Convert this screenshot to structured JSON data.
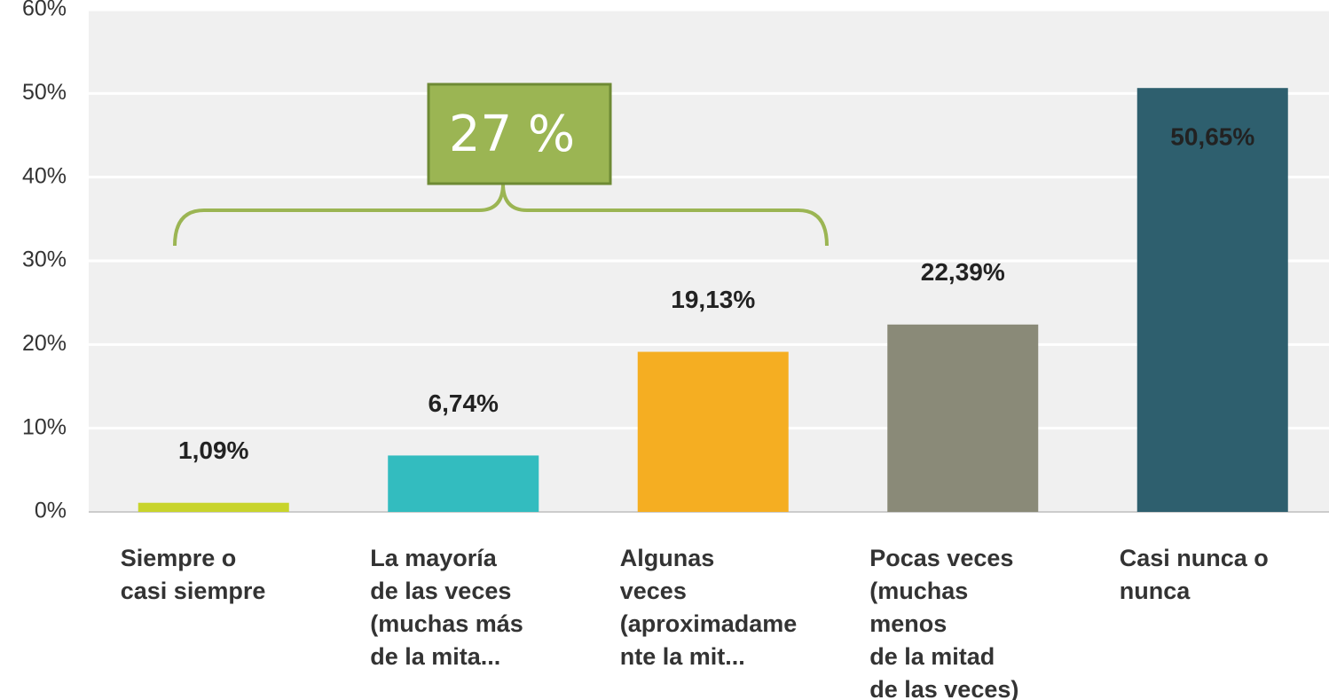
{
  "chart_data": {
    "type": "bar",
    "categories": [
      "Siempre o\ncasi siempre",
      "La mayoría\nde las veces\n(muchas más\nde la mita...",
      "Algunas\nveces\n(aproximadame\nnte la mit...",
      "Pocas veces\n(muchas\nmenos\nde la mitad\nde las veces)",
      "Casi nunca o\nnunca"
    ],
    "values": [
      1.09,
      6.74,
      19.13,
      22.39,
      50.65
    ],
    "value_labels": [
      "1,09%",
      "6,74%",
      "19,13%",
      "22,39%",
      "50,65%"
    ],
    "colors": [
      "#c8d42c",
      "#33bcbf",
      "#f5ae22",
      "#8a8a78",
      "#2e5f6e"
    ],
    "ylim": [
      0,
      60
    ],
    "yticks": [
      {
        "value": 0,
        "label": "0%"
      },
      {
        "value": 10,
        "label": "10%"
      },
      {
        "value": 20,
        "label": "20%"
      },
      {
        "value": 30,
        "label": "30%"
      },
      {
        "value": 40,
        "label": "40%"
      },
      {
        "value": 50,
        "label": "50%"
      },
      {
        "value": 60,
        "label": "60%"
      }
    ],
    "grid": true,
    "annotation": "27 %"
  }
}
